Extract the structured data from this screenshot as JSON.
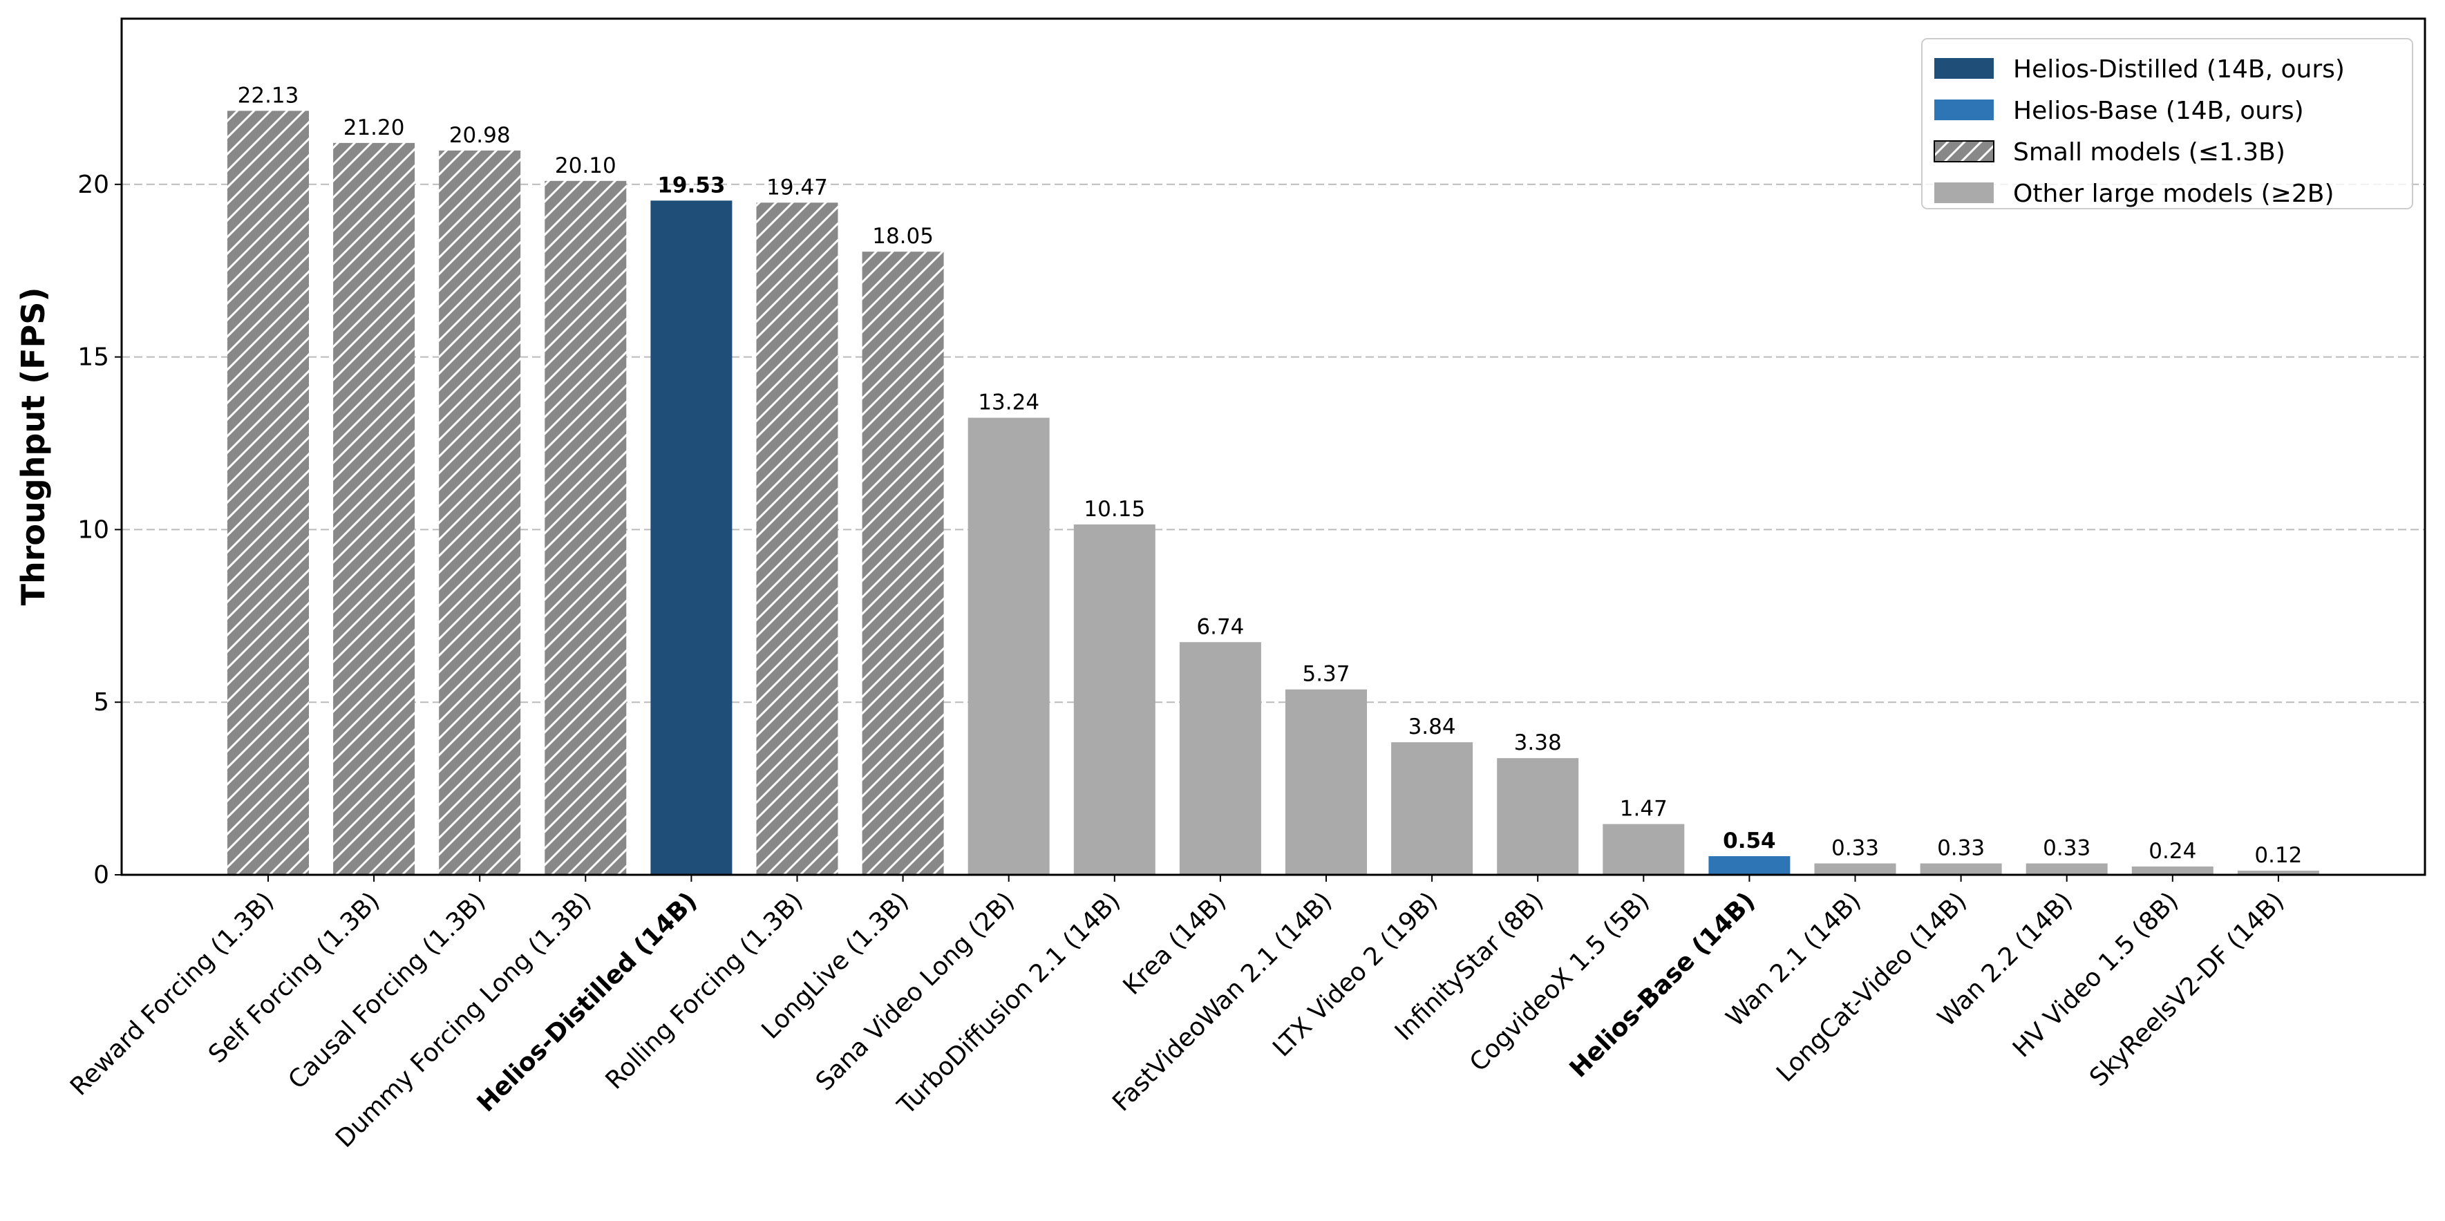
{
  "chart_data": {
    "type": "bar",
    "y_label": "Throughput (FPS)",
    "categories": [
      "Reward Forcing (1.3B)",
      "Self Forcing (1.3B)",
      "Causal Forcing (1.3B)",
      "Dummy Forcing Long (1.3B)",
      "Helios-Distilled (14B)",
      "Rolling Forcing (1.3B)",
      "LongLive (1.3B)",
      "Sana Video Long (2B)",
      "TurboDiffusion 2.1 (14B)",
      "Krea (14B)",
      "FastVideoWan 2.1 (14B)",
      "LTX Video 2 (19B)",
      "InfinityStar (8B)",
      "CogvideoX 1.5 (5B)",
      "Helios-Base (14B)",
      "Wan 2.1 (14B)",
      "LongCat-Video (14B)",
      "Wan 2.2 (14B)",
      "HV Video 1.5 (8B)",
      "SkyReelsV2-DF (14B)"
    ],
    "bold_categories": [
      4,
      14
    ],
    "series": [
      {
        "name": "Helios-Distilled (14B, ours)",
        "color": "#1f4e79",
        "values": [
          null,
          null,
          null,
          null,
          19.53,
          null,
          null,
          null,
          null,
          null,
          null,
          null,
          null,
          null,
          null,
          null,
          null,
          null,
          null,
          null
        ],
        "value_labels": [
          null,
          null,
          null,
          null,
          "19.53",
          null,
          null,
          null,
          null,
          null,
          null,
          null,
          null,
          null,
          null,
          null,
          null,
          null,
          null,
          null
        ]
      },
      {
        "name": "Helios-Base (14B, ours)",
        "color": "#2e75b6",
        "values": [
          null,
          null,
          null,
          null,
          null,
          null,
          null,
          null,
          null,
          null,
          null,
          null,
          null,
          null,
          0.54,
          null,
          null,
          null,
          null,
          null
        ],
        "value_labels": [
          null,
          null,
          null,
          null,
          null,
          null,
          null,
          null,
          null,
          null,
          null,
          null,
          null,
          null,
          "0.54",
          null,
          null,
          null,
          null,
          null
        ]
      },
      {
        "name": "Small models (≤1.3B)",
        "color": "#888888",
        "hatch": "//",
        "values": [
          22.13,
          21.2,
          20.98,
          20.1,
          null,
          19.47,
          18.05,
          null,
          null,
          null,
          null,
          null,
          null,
          null,
          null,
          null,
          null,
          null,
          null,
          null
        ],
        "value_labels": [
          "22.13",
          "21.20",
          "20.98",
          "20.10",
          null,
          "19.47",
          "18.05",
          null,
          null,
          null,
          null,
          null,
          null,
          null,
          null,
          null,
          null,
          null,
          null,
          null
        ]
      },
      {
        "name": "Other large models (≥2B)",
        "color": "#aaaaaa",
        "values": [
          null,
          null,
          null,
          null,
          null,
          null,
          null,
          13.24,
          10.15,
          6.74,
          5.37,
          3.84,
          3.38,
          1.47,
          null,
          0.33,
          0.33,
          0.33,
          0.24,
          0.12
        ],
        "value_labels": [
          null,
          null,
          null,
          null,
          null,
          null,
          null,
          "13.24",
          "10.15",
          "6.74",
          "5.37",
          "3.84",
          "3.38",
          "1.47",
          null,
          "0.33",
          "0.33",
          "0.33",
          "0.24",
          "0.12"
        ]
      }
    ],
    "ylim": [
      0,
      24.8
    ],
    "yticks": [
      0,
      5,
      10,
      15,
      20
    ],
    "grid": true,
    "legend": "upper right"
  }
}
